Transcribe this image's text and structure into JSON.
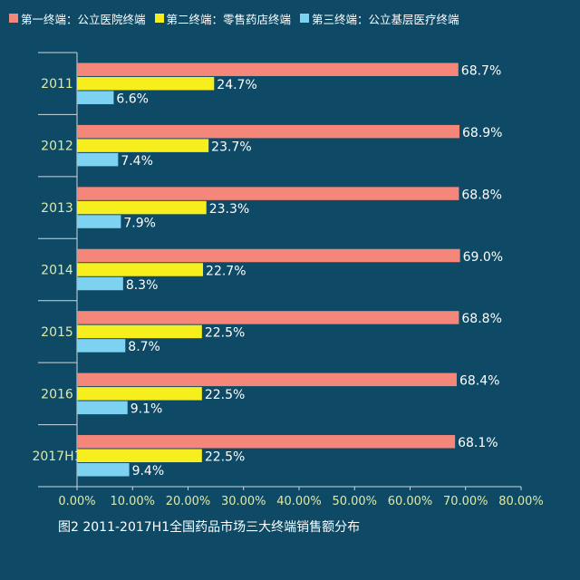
{
  "chart_data": {
    "type": "bar",
    "orientation": "horizontal",
    "categories": [
      "2011",
      "2012",
      "2013",
      "2014",
      "2015",
      "2016",
      "2017H1"
    ],
    "series": [
      {
        "name": "第一终端：公立医院终端",
        "values": [
          68.7,
          68.9,
          68.8,
          69.0,
          68.8,
          68.4,
          68.1
        ],
        "color": "#f4877a"
      },
      {
        "name": "第二终端：零售药店终端",
        "values": [
          24.7,
          23.7,
          23.3,
          22.7,
          22.5,
          22.5,
          22.5
        ],
        "color": "#f7ef1d"
      },
      {
        "name": "第三终端：公立基层医疗终端",
        "values": [
          6.6,
          7.4,
          7.9,
          8.3,
          8.7,
          9.1,
          9.4
        ],
        "color": "#7cd2f0"
      }
    ],
    "xlim": [
      0,
      80
    ],
    "x_ticks": [
      "0.00%",
      "10.00%",
      "20.00%",
      "30.00%",
      "40.00%",
      "50.00%",
      "60.00%",
      "70.00%",
      "80.00%"
    ],
    "value_suffix": "%",
    "legend_position": "top",
    "grid": false
  },
  "caption": "图2  2011-2017H1全国药品市场三大终端销售额分布",
  "colors": {
    "background": "#0e4a66",
    "axis": "#c9d8e0",
    "category_label": "#dfe9a6",
    "tick_label": "#dfe9a6",
    "value_label": "#ffffff"
  }
}
